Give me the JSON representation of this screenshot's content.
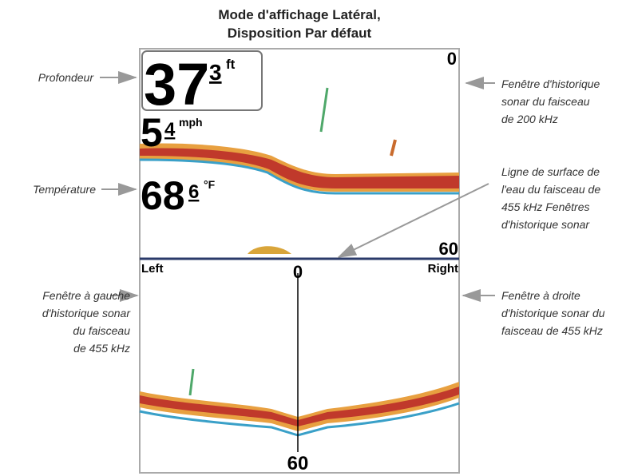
{
  "title": {
    "lines": [
      "Mode d'affichage Latéral,",
      "Disposition Par défaut"
    ]
  },
  "screen": {
    "depth": {
      "value": "37",
      "decimal": "3",
      "unit": "ft"
    },
    "speed": {
      "value": "5",
      "decimal": "4",
      "unit": "mph"
    },
    "temperature": {
      "value": "68",
      "decimal": "6",
      "unit": "°F"
    },
    "top_scale_start": "0",
    "top_scale_end": "60",
    "left_label": "Left",
    "center_start": "0",
    "right_label": "Right",
    "bottom_scale_end": "60"
  },
  "callouts": {
    "depth": {
      "lines": [
        "Profondeur"
      ]
    },
    "temperature": {
      "lines": [
        "Température"
      ]
    },
    "window_200": {
      "lines": [
        "Fenêtre d'historique",
        "sonar du faisceau",
        "de 200 kHz"
      ]
    },
    "surface_line": {
      "lines": [
        "Ligne de surface de",
        "l'eau du faisceau de",
        "455 kHz Fenêtres",
        "d'historique sonar"
      ]
    },
    "left_window": {
      "lines": [
        "Fenêtre à gauche",
        "d'historique sonar",
        "du faisceau",
        "de 455 kHz"
      ]
    },
    "right_window": {
      "lines": [
        "Fenêtre à droite",
        "d'historique sonar du",
        "faisceau de 455 kHz"
      ]
    }
  }
}
